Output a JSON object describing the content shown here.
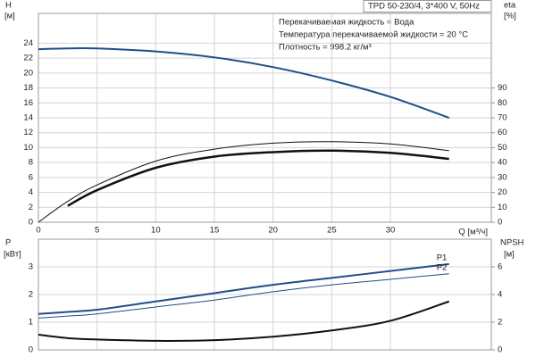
{
  "chart_data": [
    {
      "type": "line",
      "title": "TPD 50-230/4, 3*400 V, 50Hz",
      "notes": [
        "Перекачиваемая жидкость = Вода",
        "Температура перекачиваемой жидкости = 20 °C",
        "Плотность = 998.2 кг/м³"
      ],
      "y_label": "H",
      "y_unit": "[м]",
      "y2_label": "eta",
      "y2_unit": "[%]",
      "x_label": "Q [м³/ч]",
      "x": [
        0,
        2.5,
        5,
        10,
        15,
        20,
        25,
        30,
        35
      ],
      "xlim": [
        0,
        38.6
      ],
      "xticks": [
        0,
        5,
        10,
        15,
        20,
        25,
        30
      ],
      "ylim": [
        0,
        28
      ],
      "yticks": [
        0,
        2,
        4,
        6,
        8,
        10,
        12,
        14,
        16,
        18,
        20,
        22,
        24
      ],
      "y2lim": [
        0,
        140
      ],
      "y2ticks": [
        0,
        10,
        20,
        30,
        40,
        50,
        60,
        70,
        80,
        90
      ],
      "grid": true,
      "series": [
        {
          "color": "#1f4e8c",
          "line_width": 2,
          "values": [
            23.2,
            23.3,
            23.3,
            22.9,
            22.1,
            20.8,
            19.0,
            16.8,
            14.0
          ]
        },
        {
          "color": "#111111",
          "line_width": 1,
          "axis": "y2",
          "values": [
            0,
            14,
            25,
            41,
            49,
            53,
            54,
            52.5,
            48
          ]
        },
        {
          "color": "#111111",
          "line_width": 2.5,
          "axis": "y2",
          "values": [
            null,
            11,
            21.5,
            36.5,
            44,
            47,
            48,
            46.5,
            42.5
          ]
        }
      ]
    },
    {
      "type": "line",
      "y_label": "P",
      "y_unit": "[кВт]",
      "y2_label": "NPSH",
      "y2_unit": "[м]",
      "x": [
        0,
        2.5,
        5,
        10,
        15,
        20,
        25,
        30,
        35
      ],
      "xlim": [
        0,
        38.6
      ],
      "xticks": [
        0,
        5,
        10,
        15,
        20,
        25,
        30
      ],
      "ylim": [
        0,
        4
      ],
      "yticks": [
        0,
        1,
        2,
        3
      ],
      "y2lim": [
        0,
        8
      ],
      "y2ticks": [
        0,
        2,
        4,
        6
      ],
      "grid": true,
      "series": [
        {
          "name": "P1",
          "color": "#1f4e8c",
          "line_width": 2,
          "values": [
            1.3,
            1.37,
            1.45,
            1.75,
            2.05,
            2.35,
            2.6,
            2.85,
            3.1
          ]
        },
        {
          "name": "P2",
          "color": "#1f4e8c",
          "line_width": 1,
          "values": [
            1.15,
            1.22,
            1.3,
            1.55,
            1.8,
            2.1,
            2.35,
            2.55,
            2.75
          ]
        },
        {
          "color": "#111111",
          "line_width": 2,
          "axis": "y2",
          "values": [
            1.1,
            0.85,
            0.75,
            0.65,
            0.7,
            0.95,
            1.4,
            2.1,
            3.5
          ]
        }
      ]
    }
  ]
}
